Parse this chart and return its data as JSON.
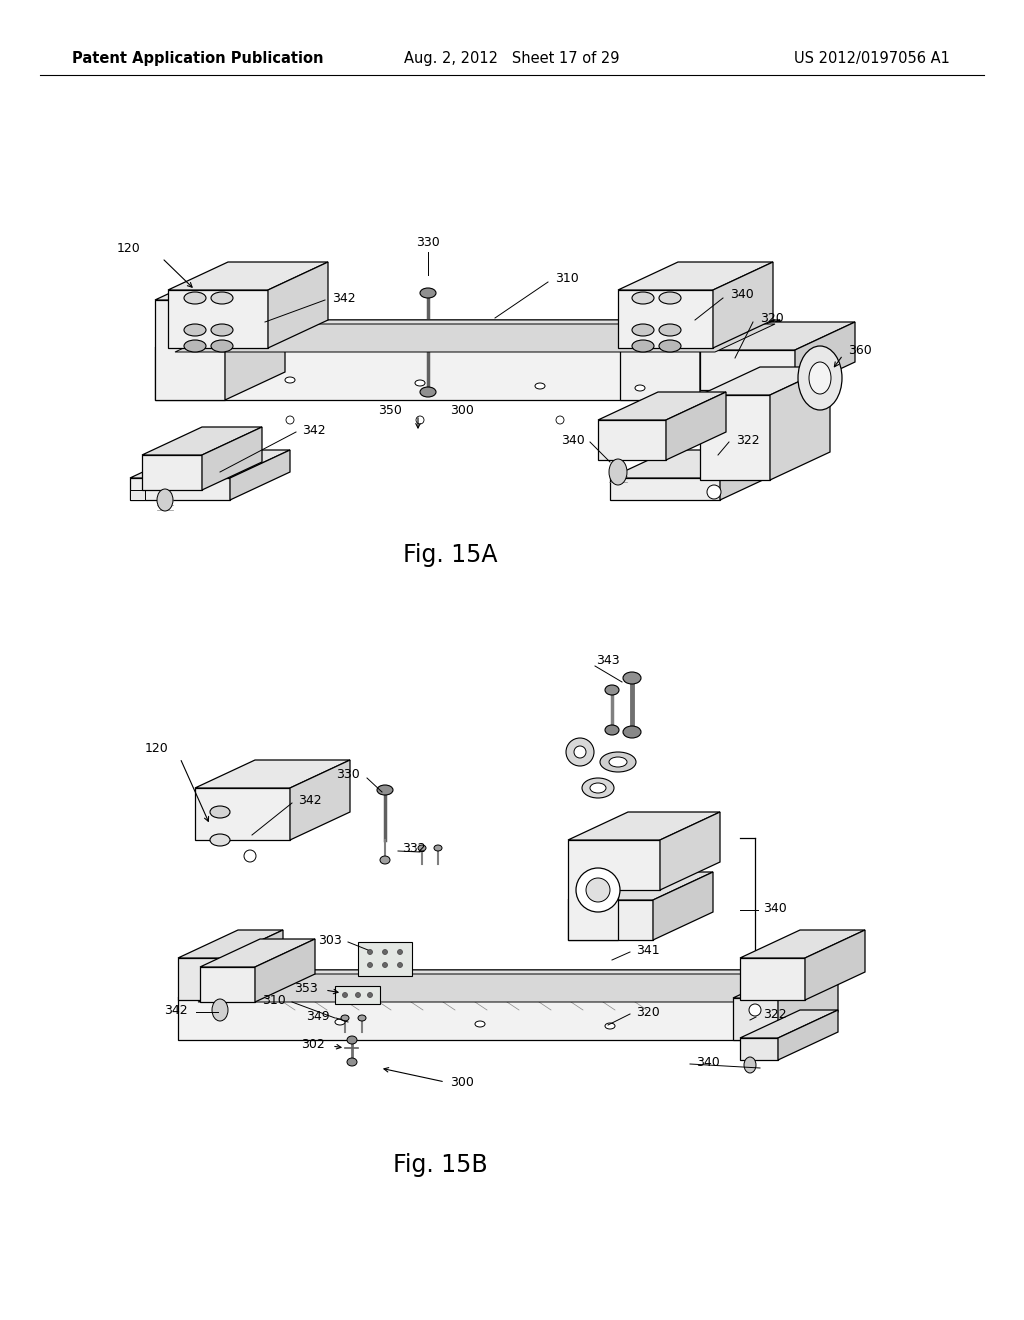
{
  "background_color": "#ffffff",
  "header_left": "Patent Application Publication",
  "header_center": "Aug. 2, 2012   Sheet 17 of 29",
  "header_right": "US 2012/0197056 A1",
  "fig_label_A": "Fig. 15A",
  "fig_label_B": "Fig. 15B",
  "header_fontsize": 10.5,
  "fig_label_fontsize": 17,
  "label_fontsize": 9,
  "page_width": 10.24,
  "page_height": 13.2
}
